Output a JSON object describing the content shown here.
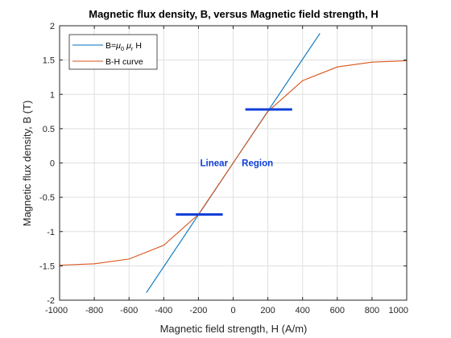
{
  "chart_data": {
    "type": "line",
    "title": "Magnetic flux density, B, versus Magnetic field strength, H",
    "xlabel": "Magnetic field strength, H (A/m)",
    "ylabel": "Magnetic flux density, B (T)",
    "xlim": [
      -1000,
      1000
    ],
    "ylim": [
      -2,
      2
    ],
    "xticks": [
      -1000,
      -800,
      -600,
      -400,
      -200,
      0,
      200,
      400,
      600,
      800,
      1000
    ],
    "yticks": [
      -2,
      -1.5,
      -1,
      -0.5,
      0,
      0.5,
      1,
      1.5,
      2
    ],
    "grid": true,
    "legend_position": "top-left",
    "series": [
      {
        "name": "B=μ0 μr H",
        "legend": {
          "base": "B=",
          "mu1": "μ",
          "sub1": "0",
          "mu2": "μ",
          "sub2": "r",
          "tail": "H"
        },
        "color": "#0072BD",
        "x": [
          -500,
          500
        ],
        "y": [
          -1.89,
          1.89
        ]
      },
      {
        "name": "B-H curve",
        "color": "#D95319",
        "x": [
          -1000,
          -800,
          -600,
          -400,
          -200,
          0,
          200,
          400,
          600,
          800,
          1000
        ],
        "y": [
          -1.49,
          -1.47,
          -1.4,
          -1.2,
          -0.75,
          0,
          0.75,
          1.2,
          1.4,
          1.47,
          1.49
        ]
      }
    ],
    "annotations": {
      "text1": "Linear",
      "text1_at": [
        -110,
        0
      ],
      "text2": "Region",
      "text2_at": [
        140,
        0
      ],
      "color": "#0F3FD9",
      "markers": [
        {
          "x1": -330,
          "x2": -60,
          "y": -0.75
        },
        {
          "x1": 70,
          "x2": 340,
          "y": 0.78
        }
      ]
    }
  }
}
